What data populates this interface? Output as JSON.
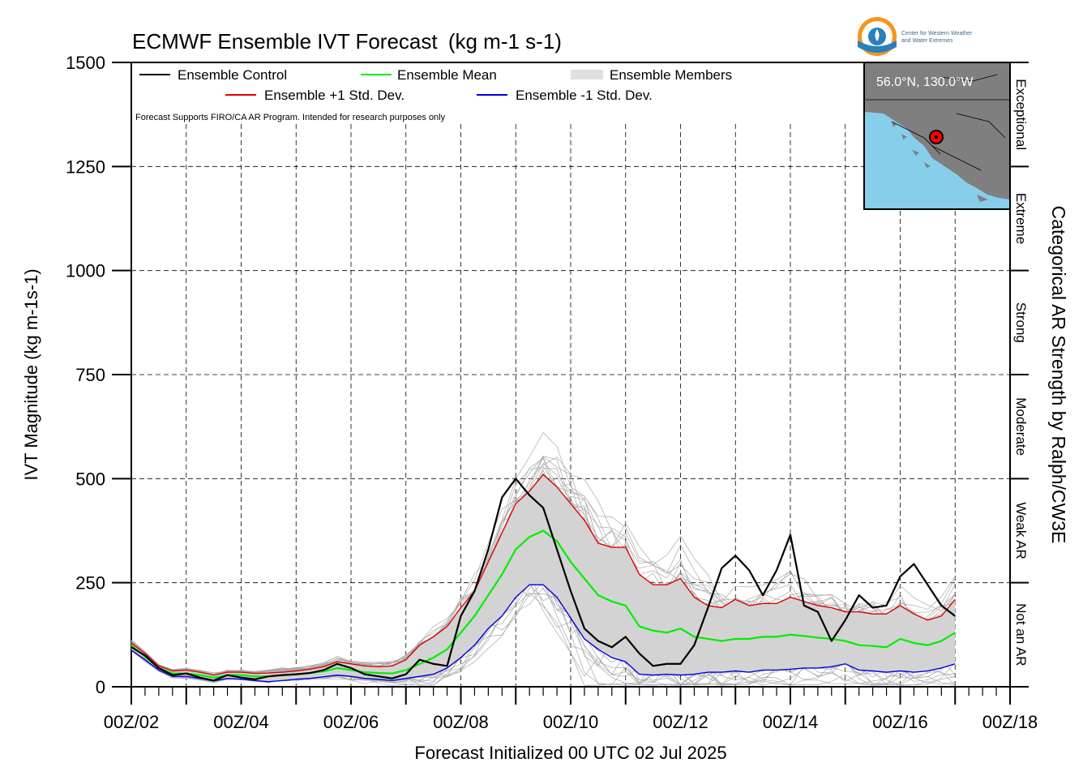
{
  "chart_data": {
    "type": "line",
    "title": "ECMWF Ensemble IVT Forecast",
    "title_units": "(kg m-1 s-1)",
    "ylabel": "IVT Magnitude (kg m-1s-1)",
    "xlabel": "Forecast Initialized 00 UTC 02 Jul 2025",
    "right_label": "Categorical AR Strength by Ralph/CW3E",
    "note": "Forecast Supports FIRO/CA AR Program. Intended for research purposes only",
    "x_unit": "day of July 2025 (UTC)",
    "xlim": [
      2,
      18
    ],
    "ylim": [
      0,
      1500
    ],
    "yticks": [
      0,
      250,
      500,
      750,
      1000,
      1250,
      1500
    ],
    "xtick_labels": [
      {
        "x": 2,
        "label": "00Z/02"
      },
      {
        "x": 4,
        "label": "00Z/04"
      },
      {
        "x": 6,
        "label": "00Z/06"
      },
      {
        "x": 8,
        "label": "00Z/08"
      },
      {
        "x": 10,
        "label": "00Z/10"
      },
      {
        "x": 12,
        "label": "00Z/12"
      },
      {
        "x": 14,
        "label": "00Z/14"
      },
      {
        "x": 16,
        "label": "00Z/16"
      },
      {
        "x": 18,
        "label": "00Z/18"
      }
    ],
    "grid": true,
    "legend_position": "top-left",
    "legend": [
      {
        "label": "Ensemble Control",
        "color": "#000000"
      },
      {
        "label": "Ensemble Mean",
        "color": "#00ee00"
      },
      {
        "label": "Ensemble Members",
        "color": "#aaaaaa"
      },
      {
        "label": "Ensemble +1 Std. Dev.",
        "color": "#e00000"
      },
      {
        "label": "Ensemble -1 Std. Dev.",
        "color": "#0000e0"
      }
    ],
    "categories_ar": [
      {
        "label": "Not an AR",
        "from": 0,
        "to": 250
      },
      {
        "label": "Weak AR",
        "from": 250,
        "to": 500
      },
      {
        "label": "Moderate",
        "from": 500,
        "to": 750
      },
      {
        "label": "Strong",
        "from": 750,
        "to": 1000
      },
      {
        "label": "Extreme",
        "from": 1000,
        "to": 1250
      },
      {
        "label": "Exceptional",
        "from": 1250,
        "to": 1500
      }
    ],
    "map_inset": {
      "label": "56.0°N, 130.0°W"
    },
    "logo_text": [
      "Center for Western Weather",
      "and Water Extremes"
    ],
    "series": [
      {
        "name": "Ensemble Control",
        "color": "#000000",
        "points": [
          [
            2.0,
            95
          ],
          [
            2.25,
            75
          ],
          [
            2.5,
            45
          ],
          [
            2.75,
            28
          ],
          [
            3.0,
            32
          ],
          [
            3.25,
            22
          ],
          [
            3.5,
            15
          ],
          [
            3.75,
            28
          ],
          [
            4.0,
            22
          ],
          [
            4.25,
            18
          ],
          [
            4.5,
            25
          ],
          [
            4.75,
            28
          ],
          [
            5.0,
            30
          ],
          [
            5.25,
            33
          ],
          [
            5.5,
            40
          ],
          [
            5.75,
            55
          ],
          [
            6.0,
            45
          ],
          [
            6.25,
            30
          ],
          [
            6.5,
            25
          ],
          [
            6.75,
            20
          ],
          [
            7.0,
            30
          ],
          [
            7.25,
            65
          ],
          [
            7.5,
            55
          ],
          [
            7.75,
            50
          ],
          [
            8.0,
            170
          ],
          [
            8.25,
            230
          ],
          [
            8.5,
            330
          ],
          [
            8.75,
            455
          ],
          [
            9.0,
            500
          ],
          [
            9.25,
            460
          ],
          [
            9.5,
            430
          ],
          [
            9.75,
            330
          ],
          [
            10.0,
            230
          ],
          [
            10.25,
            140
          ],
          [
            10.5,
            110
          ],
          [
            10.75,
            95
          ],
          [
            11.0,
            120
          ],
          [
            11.25,
            80
          ],
          [
            11.5,
            50
          ],
          [
            11.75,
            55
          ],
          [
            12.0,
            55
          ],
          [
            12.25,
            100
          ],
          [
            12.5,
            190
          ],
          [
            12.75,
            285
          ],
          [
            13.0,
            315
          ],
          [
            13.25,
            280
          ],
          [
            13.5,
            220
          ],
          [
            13.75,
            280
          ],
          [
            14.0,
            365
          ],
          [
            14.25,
            195
          ],
          [
            14.5,
            180
          ],
          [
            14.75,
            110
          ],
          [
            15.0,
            160
          ],
          [
            15.25,
            220
          ],
          [
            15.5,
            190
          ],
          [
            15.75,
            195
          ],
          [
            16.0,
            265
          ],
          [
            16.25,
            295
          ],
          [
            16.5,
            245
          ],
          [
            16.75,
            195
          ],
          [
            17.0,
            170
          ]
        ]
      },
      {
        "name": "Ensemble Mean",
        "color": "#00ee00",
        "points": [
          [
            2.0,
            100
          ],
          [
            2.25,
            72
          ],
          [
            2.5,
            45
          ],
          [
            2.75,
            32
          ],
          [
            3.0,
            32
          ],
          [
            3.25,
            28
          ],
          [
            3.5,
            22
          ],
          [
            3.75,
            28
          ],
          [
            4.0,
            28
          ],
          [
            4.25,
            25
          ],
          [
            4.5,
            25
          ],
          [
            4.75,
            28
          ],
          [
            5.0,
            30
          ],
          [
            5.25,
            33
          ],
          [
            5.5,
            37
          ],
          [
            5.75,
            45
          ],
          [
            6.0,
            40
          ],
          [
            6.25,
            35
          ],
          [
            6.5,
            33
          ],
          [
            6.75,
            32
          ],
          [
            7.0,
            40
          ],
          [
            7.25,
            55
          ],
          [
            7.5,
            70
          ],
          [
            7.75,
            90
          ],
          [
            8.0,
            130
          ],
          [
            8.25,
            170
          ],
          [
            8.5,
            220
          ],
          [
            8.75,
            270
          ],
          [
            9.0,
            330
          ],
          [
            9.25,
            360
          ],
          [
            9.5,
            375
          ],
          [
            9.75,
            350
          ],
          [
            10.0,
            300
          ],
          [
            10.25,
            260
          ],
          [
            10.5,
            220
          ],
          [
            10.75,
            205
          ],
          [
            11.0,
            195
          ],
          [
            11.25,
            145
          ],
          [
            11.5,
            135
          ],
          [
            11.75,
            130
          ],
          [
            12.0,
            140
          ],
          [
            12.25,
            120
          ],
          [
            12.5,
            115
          ],
          [
            12.75,
            110
          ],
          [
            13.0,
            115
          ],
          [
            13.25,
            115
          ],
          [
            13.5,
            120
          ],
          [
            13.75,
            120
          ],
          [
            14.0,
            125
          ],
          [
            14.25,
            122
          ],
          [
            14.5,
            118
          ],
          [
            14.75,
            115
          ],
          [
            15.0,
            110
          ],
          [
            15.25,
            100
          ],
          [
            15.5,
            98
          ],
          [
            15.75,
            95
          ],
          [
            16.0,
            115
          ],
          [
            16.25,
            105
          ],
          [
            16.5,
            100
          ],
          [
            16.75,
            110
          ],
          [
            17.0,
            130
          ]
        ]
      },
      {
        "name": "Ensemble +1 Std. Dev.",
        "color": "#e00000",
        "points": [
          [
            2.0,
            105
          ],
          [
            2.25,
            80
          ],
          [
            2.5,
            50
          ],
          [
            2.75,
            38
          ],
          [
            3.0,
            40
          ],
          [
            3.25,
            35
          ],
          [
            3.5,
            28
          ],
          [
            3.75,
            35
          ],
          [
            4.0,
            35
          ],
          [
            4.25,
            32
          ],
          [
            4.5,
            33
          ],
          [
            4.75,
            35
          ],
          [
            5.0,
            38
          ],
          [
            5.25,
            42
          ],
          [
            5.5,
            48
          ],
          [
            5.75,
            60
          ],
          [
            6.0,
            55
          ],
          [
            6.25,
            50
          ],
          [
            6.5,
            48
          ],
          [
            6.75,
            50
          ],
          [
            7.0,
            65
          ],
          [
            7.25,
            100
          ],
          [
            7.5,
            120
          ],
          [
            7.75,
            145
          ],
          [
            8.0,
            190
          ],
          [
            8.25,
            230
          ],
          [
            8.5,
            300
          ],
          [
            8.75,
            370
          ],
          [
            9.0,
            440
          ],
          [
            9.25,
            470
          ],
          [
            9.5,
            510
          ],
          [
            9.75,
            480
          ],
          [
            10.0,
            440
          ],
          [
            10.25,
            400
          ],
          [
            10.5,
            345
          ],
          [
            10.75,
            335
          ],
          [
            11.0,
            335
          ],
          [
            11.25,
            270
          ],
          [
            11.5,
            245
          ],
          [
            11.75,
            245
          ],
          [
            12.0,
            260
          ],
          [
            12.25,
            215
          ],
          [
            12.5,
            195
          ],
          [
            12.75,
            190
          ],
          [
            13.0,
            210
          ],
          [
            13.25,
            195
          ],
          [
            13.5,
            200
          ],
          [
            13.75,
            200
          ],
          [
            14.0,
            215
          ],
          [
            14.25,
            205
          ],
          [
            14.5,
            195
          ],
          [
            14.75,
            190
          ],
          [
            15.0,
            180
          ],
          [
            15.25,
            180
          ],
          [
            15.5,
            175
          ],
          [
            15.75,
            175
          ],
          [
            16.0,
            195
          ],
          [
            16.25,
            175
          ],
          [
            16.5,
            160
          ],
          [
            16.75,
            170
          ],
          [
            17.0,
            210
          ]
        ]
      },
      {
        "name": "Ensemble -1 Std. Dev.",
        "color": "#0000e0",
        "points": [
          [
            2.0,
            88
          ],
          [
            2.25,
            65
          ],
          [
            2.5,
            40
          ],
          [
            2.75,
            25
          ],
          [
            3.0,
            25
          ],
          [
            3.25,
            20
          ],
          [
            3.5,
            14
          ],
          [
            3.75,
            20
          ],
          [
            4.0,
            18
          ],
          [
            4.25,
            15
          ],
          [
            4.5,
            12
          ],
          [
            4.75,
            15
          ],
          [
            5.0,
            18
          ],
          [
            5.25,
            20
          ],
          [
            5.5,
            24
          ],
          [
            5.75,
            28
          ],
          [
            6.0,
            25
          ],
          [
            6.25,
            20
          ],
          [
            6.5,
            18
          ],
          [
            6.75,
            15
          ],
          [
            7.0,
            20
          ],
          [
            7.25,
            25
          ],
          [
            7.5,
            30
          ],
          [
            7.75,
            45
          ],
          [
            8.0,
            70
          ],
          [
            8.25,
            100
          ],
          [
            8.5,
            140
          ],
          [
            8.75,
            170
          ],
          [
            9.0,
            215
          ],
          [
            9.25,
            245
          ],
          [
            9.5,
            245
          ],
          [
            9.75,
            215
          ],
          [
            10.0,
            165
          ],
          [
            10.25,
            115
          ],
          [
            10.5,
            90
          ],
          [
            10.75,
            70
          ],
          [
            11.0,
            60
          ],
          [
            11.25,
            30
          ],
          [
            11.5,
            28
          ],
          [
            11.75,
            30
          ],
          [
            12.0,
            28
          ],
          [
            12.25,
            30
          ],
          [
            12.5,
            35
          ],
          [
            12.75,
            35
          ],
          [
            13.0,
            38
          ],
          [
            13.25,
            35
          ],
          [
            13.5,
            40
          ],
          [
            13.75,
            40
          ],
          [
            14.0,
            42
          ],
          [
            14.25,
            45
          ],
          [
            14.5,
            45
          ],
          [
            14.75,
            48
          ],
          [
            15.0,
            55
          ],
          [
            15.25,
            40
          ],
          [
            15.5,
            38
          ],
          [
            15.75,
            35
          ],
          [
            16.0,
            38
          ],
          [
            16.25,
            35
          ],
          [
            16.5,
            38
          ],
          [
            16.75,
            45
          ],
          [
            17.0,
            55
          ]
        ]
      }
    ]
  }
}
